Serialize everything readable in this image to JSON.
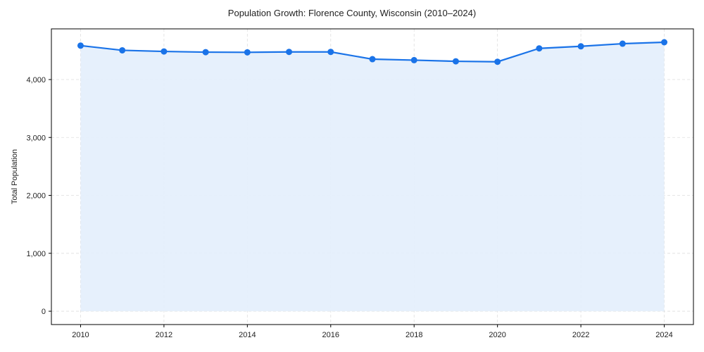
{
  "chart_data": {
    "type": "line",
    "title": "Population Growth: Florence County, Wisconsin (2010–2024)",
    "xlabel": "",
    "ylabel": "Total Population",
    "x": [
      2010,
      2011,
      2012,
      2013,
      2014,
      2015,
      2016,
      2017,
      2018,
      2019,
      2020,
      2021,
      2022,
      2023,
      2024
    ],
    "series": [
      {
        "name": "Total Population",
        "values": [
          4586,
          4505,
          4485,
          4473,
          4470,
          4477,
          4477,
          4352,
          4335,
          4315,
          4307,
          4538,
          4574,
          4619,
          4644
        ],
        "color": "#1a73e8",
        "fill": "#e3eefc"
      }
    ],
    "xticks": [
      "2010",
      "2012",
      "2014",
      "2016",
      "2018",
      "2020",
      "2022",
      "2024"
    ],
    "yticks": [
      "0",
      "1,000",
      "2,000",
      "3,000",
      "4,000"
    ],
    "ylim": [
      -230,
      4875
    ],
    "xlim": [
      2009.3,
      2024.7
    ],
    "grid": true,
    "legend": "none"
  }
}
